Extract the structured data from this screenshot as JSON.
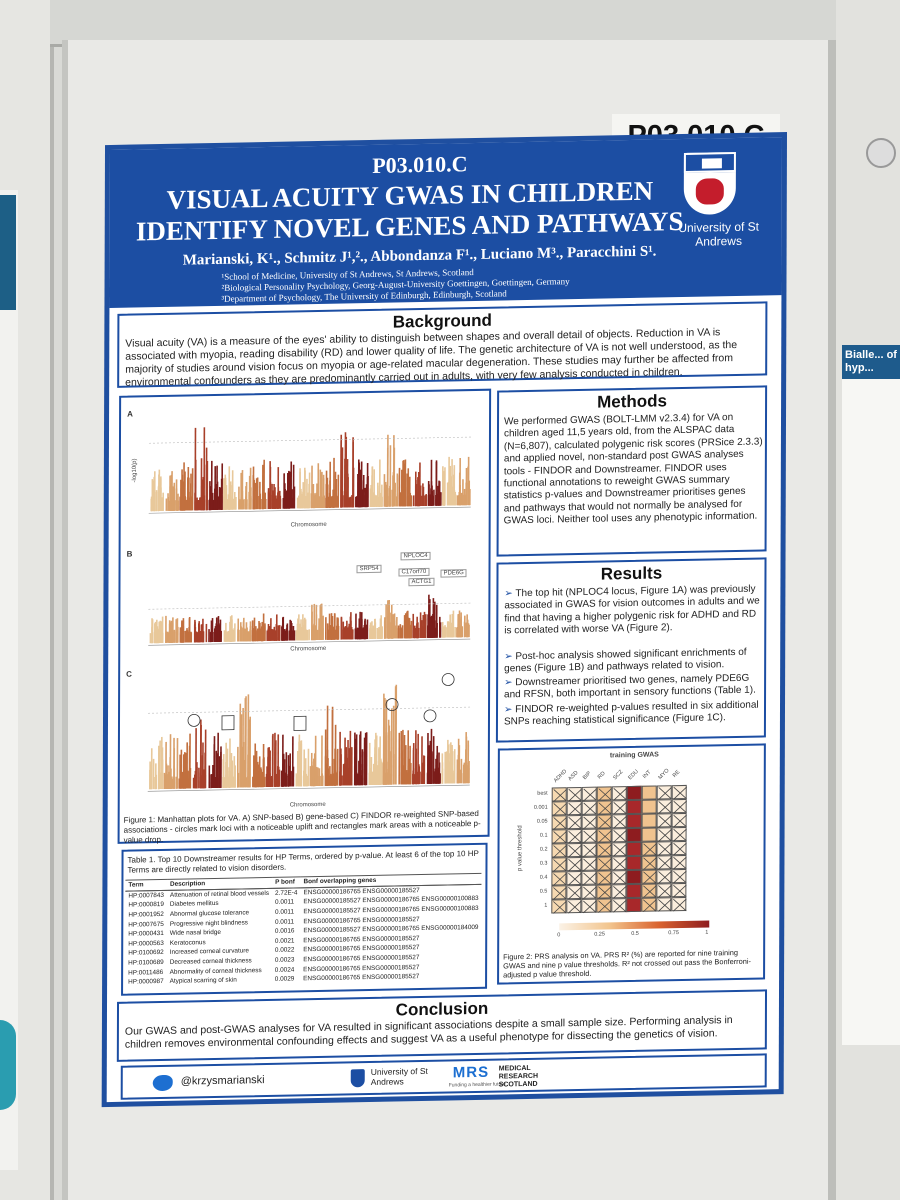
{
  "poster_code_tag": "P03.010.C",
  "poster": {
    "code": "P03.010.C",
    "title_line1": "VISUAL ACUITY GWAS IN CHILDREN",
    "title_line2": "IDENTIFY NOVEL GENES AND PATHWAYS",
    "authors": "Marianski, K¹., Schmitz J¹,²., Abbondanza F¹., Luciano M³., Paracchini S¹.",
    "affiliations": [
      "¹School of Medicine, University of St Andrews, St Andrews, Scotland",
      "²Biological Personality Psychology, Georg-August-University Goettingen, Goettingen, Germany",
      "³Department of Psychology, The University of Edinburgh, Edinburgh, Scotland"
    ],
    "university": "University of St Andrews",
    "background": {
      "title": "Background",
      "text": "Visual acuity (VA) is a measure of the eyes' ability to distinguish between shapes and overall detail of objects. Reduction in VA is associated with myopia, reading disability (RD) and lower quality of life. The genetic architecture of VA is not well understood, as the majority of studies around vision focus on myopia or age-related macular degeneration. These studies may further be affected from environmental confounders as they are predominantly carried out in adults, with very few analysis conducted in children."
    },
    "methods": {
      "title": "Methods",
      "text": "We performed GWAS (BOLT-LMM v2.3.4) for VA on children aged 11,5 years old, from the ALSPAC data (N=6,807), calculated polygenic risk scores (PRSice 2.3.3) and applied novel, non-standard post GWAS analyses tools - FINDOR and Downstreamer. FINDOR uses functional annotations to reweight GWAS summary statistics p-values and Downstreamer prioritises genes and pathways that would not normally be analysed for GWAS loci. Neither tool uses any phenotypic information."
    },
    "results": {
      "title": "Results",
      "bullets": [
        "The top hit (NPLOC4 locus, Figure 1A) was previously associated in GWAS for vision outcomes in adults and we find that having a higher polygenic risk for ADHD and RD is correlated with worse VA (Figure 2).",
        "Post-hoc analysis showed significant enrichments of genes (Figure 1B) and pathways related to vision.",
        "Downstreamer prioritised two genes, namely PDE6G and RFSN, both important in sensory functions (Table 1).",
        "FINDOR re-weighted p-values resulted in six additional SNPs reaching statistical significance (Figure 1C)."
      ]
    },
    "figure1": {
      "panel_labels": [
        "A",
        "B",
        "C"
      ],
      "xlabel": "Chromosome",
      "ylabel": "-log10(p)",
      "gene_labels": [
        "NPLOC4",
        "SRP54",
        "C17orf70",
        "PDE6G",
        "ACTG1"
      ],
      "caption": "Figure 1: Manhattan plots for VA. A) SNP-based B) gene-based C) FINDOR re-weighted SNP-based associations - circles mark loci with a noticeable uplift and rectangles mark areas with a noticeable p-value drop."
    },
    "table1": {
      "caption": "Table 1. Top 10 Downstreamer results for HP Terms, ordered by p-value. At least 6 of the top 10 HP Terms are directly related to vision disorders.",
      "headers": [
        "Term",
        "Description",
        "P bonf",
        "Bonf overlapping genes"
      ],
      "rows": [
        [
          "HP:0007843",
          "Attenuation of retinal blood vessels",
          "2.72E-4",
          "ENSG00000186765 ENSG00000185527"
        ],
        [
          "HP:0000819",
          "Diabetes mellitus",
          "0.0011",
          "ENSG00000185527 ENSG00000186765 ENSG00000100883"
        ],
        [
          "HP:0001952",
          "Abnormal glucose tolerance",
          "0.0011",
          "ENSG00000185527 ENSG00000186765 ENSG00000100883"
        ],
        [
          "HP:0007675",
          "Progressive night blindness",
          "0.0011",
          "ENSG00000186765 ENSG00000185527"
        ],
        [
          "HP:0000431",
          "Wide nasal bridge",
          "0.0016",
          "ENSG00000185527 ENSG00000186765 ENSG00000184009"
        ],
        [
          "HP:0000563",
          "Keratoconus",
          "0.0021",
          "ENSG00000186765 ENSG00000185527"
        ],
        [
          "HP:0100692",
          "Increased corneal curvature",
          "0.0022",
          "ENSG00000186765 ENSG00000185527"
        ],
        [
          "HP:0100689",
          "Decreased corneal thickness",
          "0.0023",
          "ENSG00000186765 ENSG00000185527"
        ],
        [
          "HP:0011486",
          "Abnormality of corneal thickness",
          "0.0024",
          "ENSG00000186765 ENSG00000185527"
        ],
        [
          "HP:0000987",
          "Atypical scarring of skin",
          "0.0029",
          "ENSG00000186765 ENSG00000185527"
        ]
      ]
    },
    "figure2": {
      "title": "training GWAS",
      "ylabel": "p value threshold",
      "columns": [
        "ADHD",
        "ASD",
        "BIP",
        "RD",
        "SCZ",
        "EDU",
        "INT",
        "MYO",
        "RE"
      ],
      "rows": [
        "best",
        "0.001",
        "0.05",
        "0.1",
        "0.2",
        "0.3",
        "0.4",
        "0.5",
        "1"
      ],
      "legend_ticks": [
        "0",
        "0.25",
        "0.5",
        "0.75",
        "1"
      ],
      "caption": "Figure 2: PRS analysis on VA. PRS R² (%) are reported for nine training GWAS and nine p value thresholds. R² not crossed out pass the Bonferroni-adjusted p value threshold."
    },
    "conclusion": {
      "title": "Conclusion",
      "text": "Our GWAS and post-GWAS analyses for VA resulted in significant associations despite a small sample size. Performing analysis in children removes environmental confounding effects and suggest VA as a useful phenotype for dissecting the genetics of vision."
    },
    "footer": {
      "twitter": "@krzysmarianski",
      "university": "University of St Andrews",
      "funder_logo": "MRS",
      "funder_tagline": "Funding a healthier future",
      "funder_name": "MEDICAL RESEARCH SCOTLAND"
    }
  },
  "right_poster": {
    "title": "Bialle... of hyp..."
  }
}
